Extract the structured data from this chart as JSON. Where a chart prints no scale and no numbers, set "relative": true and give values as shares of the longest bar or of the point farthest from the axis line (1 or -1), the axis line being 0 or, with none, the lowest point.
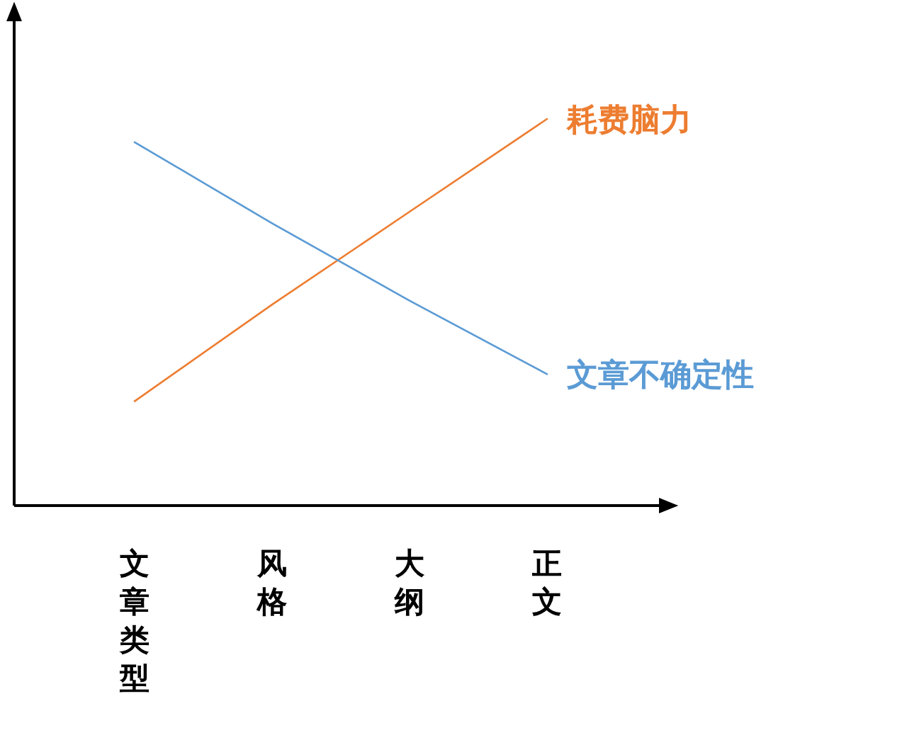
{
  "chart_data": {
    "type": "line",
    "relative": true,
    "marker": "none",
    "categories": [
      "文章类型",
      "风格",
      "大纲",
      "正文"
    ],
    "series": [
      {
        "name": "耗费脑力",
        "color": "#ed7d31",
        "values": [
          0.27,
          0.52,
          0.76,
          1.0
        ]
      },
      {
        "name": "文章不确定性",
        "color": "#5b9bd5",
        "values": [
          0.94,
          0.73,
          0.53,
          0.34
        ]
      }
    ]
  }
}
